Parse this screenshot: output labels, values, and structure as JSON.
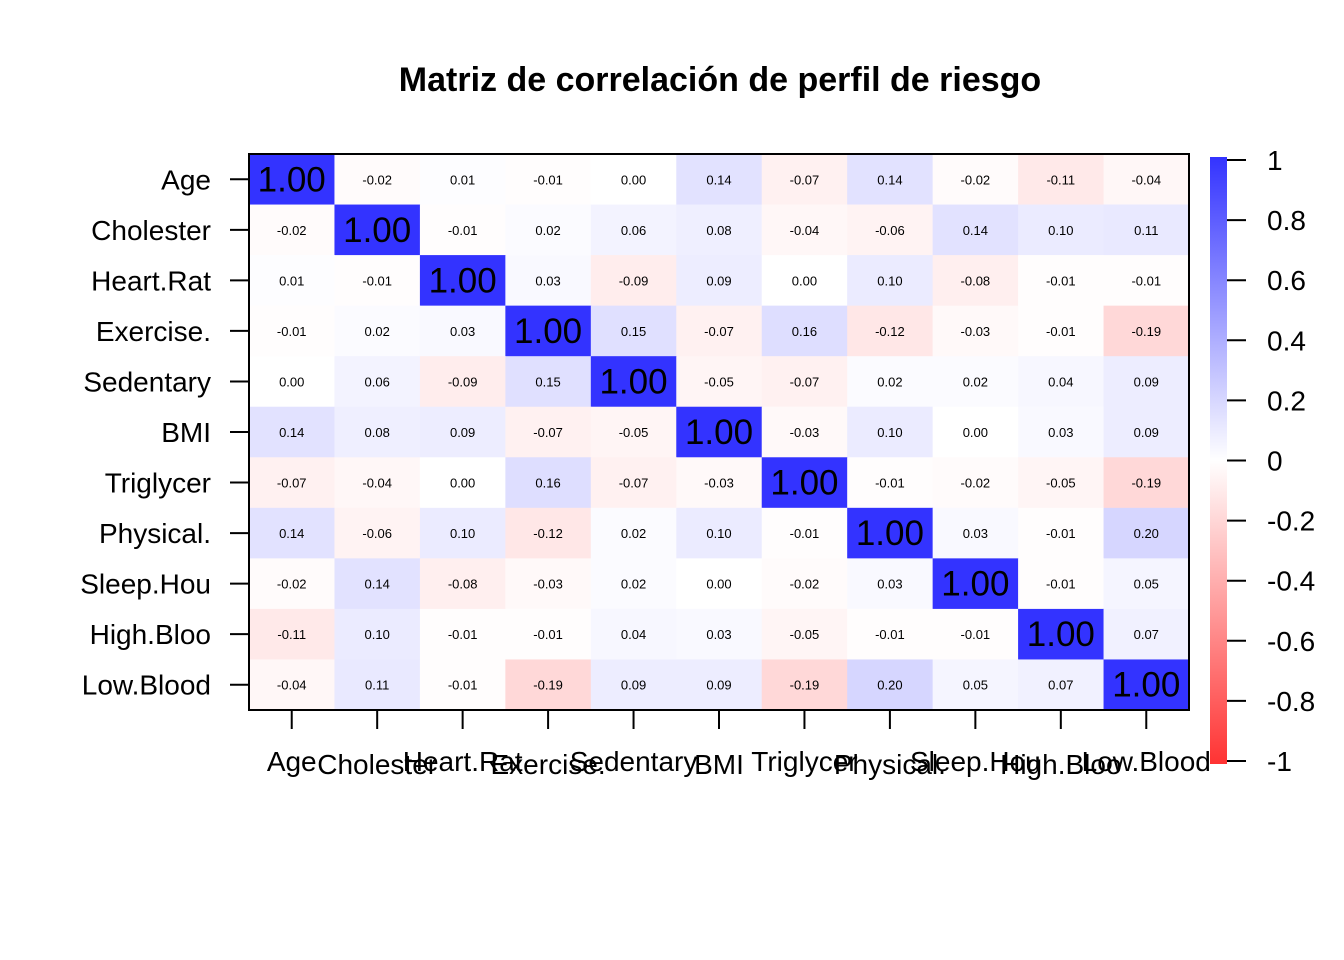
{
  "chart_data": {
    "type": "heatmap",
    "title": "Matriz de correlación de perfil de riesgo",
    "variables": [
      "Age",
      "Cholester",
      "Heart.Rat",
      "Exercise.",
      "Sedentary",
      "BMI",
      "Triglycer",
      "Physical.",
      "Sleep.Hou",
      "High.Bloo",
      "Low.Blood"
    ],
    "values": [
      [
        1.0,
        -0.02,
        0.01,
        -0.01,
        -0.0,
        0.14,
        -0.07,
        0.14,
        -0.02,
        -0.11,
        -0.04
      ],
      [
        -0.02,
        1.0,
        -0.01,
        0.02,
        0.06,
        0.08,
        -0.04,
        -0.06,
        0.14,
        0.1,
        0.11
      ],
      [
        0.01,
        -0.01,
        1.0,
        0.03,
        -0.09,
        0.09,
        0.0,
        0.1,
        -0.08,
        -0.01,
        -0.01
      ],
      [
        -0.01,
        0.02,
        0.03,
        1.0,
        0.15,
        -0.07,
        0.16,
        -0.12,
        -0.03,
        -0.01,
        -0.19
      ],
      [
        -0.0,
        0.06,
        -0.09,
        0.15,
        1.0,
        -0.05,
        -0.07,
        0.02,
        0.02,
        0.04,
        0.09
      ],
      [
        0.14,
        0.08,
        0.09,
        -0.07,
        -0.05,
        1.0,
        -0.03,
        0.1,
        -0.0,
        0.03,
        0.09
      ],
      [
        -0.07,
        -0.04,
        0.0,
        0.16,
        -0.07,
        -0.03,
        1.0,
        -0.01,
        -0.02,
        -0.05,
        -0.19
      ],
      [
        0.14,
        -0.06,
        0.1,
        -0.12,
        0.02,
        0.1,
        -0.01,
        1.0,
        0.03,
        -0.01,
        0.2
      ],
      [
        -0.02,
        0.14,
        -0.08,
        -0.03,
        0.02,
        -0.0,
        -0.02,
        0.03,
        1.0,
        -0.01,
        0.05
      ],
      [
        -0.11,
        0.1,
        -0.01,
        -0.01,
        0.04,
        0.03,
        -0.05,
        -0.01,
        -0.01,
        1.0,
        0.07
      ],
      [
        -0.04,
        0.11,
        -0.01,
        -0.19,
        0.09,
        0.09,
        -0.19,
        0.2,
        0.05,
        0.07,
        1.0
      ]
    ],
    "color_scale": {
      "min": -1,
      "max": 1,
      "negative_color": "#FF3333",
      "zero_color": "#FFFFFF",
      "positive_color": "#3333FF",
      "ticks": [
        "1",
        "0.8",
        "0.6",
        "0.4",
        "0.2",
        "0",
        "-0.2",
        "-0.4",
        "-0.6",
        "-0.8",
        "-1"
      ]
    },
    "legend_placement": "right",
    "grid": false
  }
}
